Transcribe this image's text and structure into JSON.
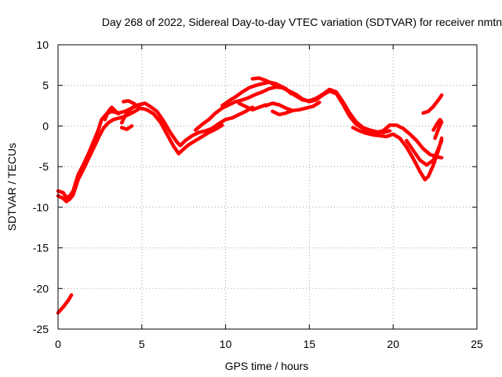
{
  "chart_data": {
    "type": "line",
    "title": "Day 268 of 2022, Sidereal Day-to-day VTEC variation (SDTVAR) for receiver nmtn",
    "xlabel": "GPS time / hours",
    "ylabel": "SDTVAR / TECUs",
    "xlim": [
      0,
      25
    ],
    "ylim": [
      -25,
      10
    ],
    "xticks": [
      0,
      5,
      10,
      15,
      20,
      25
    ],
    "yticks": [
      -25,
      -20,
      -15,
      -10,
      -5,
      0,
      5,
      10
    ],
    "xtick_labels": [
      "0",
      "5",
      "10",
      "15",
      "20",
      "25"
    ],
    "ytick_labels": [
      "-25",
      "-20",
      "-15",
      "-10",
      "-5",
      "0",
      "5",
      "10"
    ],
    "grid": true,
    "series_color": "#ff0000",
    "series": [
      {
        "name": "track-1",
        "points": [
          [
            0.0,
            -23.0
          ],
          [
            0.3,
            -22.3
          ],
          [
            0.6,
            -21.5
          ],
          [
            0.8,
            -20.8
          ]
        ]
      },
      {
        "name": "track-2",
        "points": [
          [
            0.0,
            -8.0
          ],
          [
            0.3,
            -8.2
          ],
          [
            0.5,
            -8.8
          ],
          [
            0.7,
            -8.6
          ],
          [
            0.9,
            -8.0
          ],
          [
            1.2,
            -6.0
          ],
          [
            1.5,
            -4.8
          ],
          [
            1.8,
            -3.5
          ],
          [
            2.1,
            -2.0
          ],
          [
            2.4,
            -0.5
          ],
          [
            2.6,
            0.8
          ],
          [
            2.9,
            1.5
          ],
          [
            3.2,
            1.8
          ],
          [
            3.6,
            1.6
          ],
          [
            4.0,
            1.8
          ],
          [
            4.4,
            2.2
          ],
          [
            4.8,
            2.6
          ],
          [
            5.2,
            2.8
          ],
          [
            5.5,
            2.4
          ],
          [
            5.9,
            1.8
          ],
          [
            6.3,
            0.6
          ],
          [
            6.7,
            -0.8
          ],
          [
            7.1,
            -2.0
          ],
          [
            7.3,
            -2.4
          ],
          [
            7.6,
            -1.8
          ],
          [
            8.0,
            -1.2
          ],
          [
            8.4,
            -0.8
          ],
          [
            8.8,
            -0.6
          ],
          [
            9.2,
            -0.3
          ],
          [
            9.6,
            0.3
          ],
          [
            10.0,
            0.8
          ],
          [
            10.4,
            1.0
          ],
          [
            10.8,
            1.4
          ],
          [
            11.2,
            1.8
          ],
          [
            11.6,
            2.3
          ]
        ]
      },
      {
        "name": "track-3",
        "points": [
          [
            0.0,
            -8.6
          ],
          [
            0.3,
            -8.9
          ],
          [
            0.5,
            -9.3
          ],
          [
            0.7,
            -9.0
          ],
          [
            0.9,
            -8.5
          ],
          [
            1.2,
            -6.6
          ],
          [
            1.5,
            -5.4
          ],
          [
            1.8,
            -4.1
          ],
          [
            2.1,
            -2.8
          ],
          [
            2.4,
            -1.5
          ],
          [
            2.7,
            -0.3
          ],
          [
            3.0,
            0.4
          ],
          [
            3.3,
            0.8
          ],
          [
            3.7,
            1.0
          ],
          [
            4.1,
            1.3
          ],
          [
            4.5,
            1.7
          ],
          [
            4.9,
            2.2
          ],
          [
            5.3,
            2.0
          ],
          [
            5.7,
            1.5
          ],
          [
            6.1,
            0.5
          ],
          [
            6.5,
            -1.0
          ],
          [
            6.9,
            -2.5
          ],
          [
            7.2,
            -3.4
          ],
          [
            7.4,
            -3.0
          ],
          [
            7.8,
            -2.3
          ],
          [
            8.2,
            -1.8
          ],
          [
            8.6,
            -1.3
          ],
          [
            9.0,
            -0.8
          ],
          [
            9.4,
            -0.4
          ],
          [
            9.8,
            0.1
          ]
        ]
      },
      {
        "name": "track-4",
        "points": [
          [
            2.8,
            0.8
          ],
          [
            3.0,
            1.8
          ],
          [
            3.2,
            2.3
          ],
          [
            3.4,
            1.9
          ],
          [
            3.6,
            1.5
          ]
        ]
      },
      {
        "name": "track-5",
        "points": [
          [
            3.8,
            0.4
          ],
          [
            4.0,
            1.2
          ],
          [
            4.2,
            1.8
          ],
          [
            4.4,
            2.2
          ],
          [
            4.6,
            2.5
          ],
          [
            4.8,
            2.4
          ]
        ]
      },
      {
        "name": "track-6",
        "points": [
          [
            3.9,
            3.0
          ],
          [
            4.2,
            3.1
          ],
          [
            4.5,
            2.8
          ],
          [
            4.8,
            2.4
          ]
        ]
      },
      {
        "name": "track-7",
        "points": [
          [
            3.8,
            -0.2
          ],
          [
            4.1,
            -0.4
          ],
          [
            4.4,
            0.0
          ]
        ]
      },
      {
        "name": "track-8",
        "points": [
          [
            8.2,
            -0.5
          ],
          [
            8.6,
            0.2
          ],
          [
            9.0,
            0.8
          ],
          [
            9.4,
            1.6
          ],
          [
            9.8,
            2.2
          ],
          [
            10.2,
            2.6
          ],
          [
            10.6,
            3.0
          ],
          [
            11.0,
            3.2
          ],
          [
            11.4,
            3.5
          ],
          [
            11.8,
            3.9
          ],
          [
            12.2,
            4.2
          ],
          [
            12.6,
            4.6
          ],
          [
            13.0,
            4.8
          ],
          [
            13.4,
            4.7
          ],
          [
            13.8,
            4.3
          ],
          [
            14.2,
            3.9
          ],
          [
            14.6,
            3.3
          ],
          [
            15.0,
            3.0
          ],
          [
            15.4,
            3.2
          ],
          [
            15.8,
            3.8
          ],
          [
            16.2,
            4.3
          ],
          [
            16.6,
            4.0
          ],
          [
            17.0,
            2.7
          ],
          [
            17.4,
            1.2
          ],
          [
            17.8,
            0.2
          ],
          [
            18.2,
            -0.3
          ],
          [
            18.6,
            -0.6
          ],
          [
            19.0,
            -0.8
          ],
          [
            19.4,
            -0.6
          ],
          [
            19.8,
            0.1
          ],
          [
            20.2,
            0.1
          ],
          [
            20.6,
            -0.3
          ],
          [
            21.0,
            -1.0
          ],
          [
            21.4,
            -1.8
          ],
          [
            21.8,
            -2.8
          ],
          [
            22.2,
            -3.5
          ],
          [
            22.6,
            -3.8
          ],
          [
            22.9,
            -3.9
          ]
        ]
      },
      {
        "name": "track-9",
        "points": [
          [
            9.8,
            2.5
          ],
          [
            10.2,
            3.1
          ],
          [
            10.6,
            3.6
          ],
          [
            11.0,
            4.2
          ],
          [
            11.4,
            4.7
          ],
          [
            11.8,
            5.0
          ],
          [
            12.2,
            5.2
          ],
          [
            12.6,
            5.4
          ],
          [
            13.0,
            5.2
          ],
          [
            13.4,
            4.8
          ],
          [
            13.8,
            4.2
          ],
          [
            14.2,
            3.7
          ],
          [
            14.6,
            3.2
          ],
          [
            15.0,
            3.1
          ],
          [
            15.4,
            3.4
          ],
          [
            15.8,
            3.9
          ],
          [
            16.2,
            4.5
          ],
          [
            16.6,
            4.2
          ],
          [
            17.0,
            3.0
          ],
          [
            17.4,
            1.6
          ],
          [
            17.8,
            0.5
          ],
          [
            18.2,
            -0.2
          ],
          [
            18.6,
            -0.5
          ],
          [
            19.0,
            -0.7
          ],
          [
            19.4,
            -0.8
          ],
          [
            19.8,
            -0.6
          ]
        ]
      },
      {
        "name": "track-10",
        "points": [
          [
            11.6,
            5.8
          ],
          [
            12.0,
            5.9
          ],
          [
            12.4,
            5.6
          ],
          [
            12.8,
            5.2
          ],
          [
            13.2,
            4.9
          ],
          [
            13.6,
            4.6
          ],
          [
            13.9,
            4.0
          ]
        ]
      },
      {
        "name": "track-11",
        "points": [
          [
            12.4,
            2.5
          ],
          [
            12.8,
            2.8
          ],
          [
            13.2,
            2.6
          ],
          [
            13.6,
            2.2
          ],
          [
            14.0,
            1.9
          ],
          [
            14.4,
            2.0
          ],
          [
            14.8,
            2.2
          ],
          [
            15.2,
            2.4
          ],
          [
            15.6,
            2.9
          ]
        ]
      },
      {
        "name": "track-12",
        "points": [
          [
            12.8,
            1.8
          ],
          [
            13.2,
            1.4
          ],
          [
            13.6,
            1.6
          ],
          [
            14.0,
            1.9
          ]
        ]
      },
      {
        "name": "track-13",
        "points": [
          [
            10.8,
            2.8
          ],
          [
            11.2,
            2.4
          ],
          [
            11.6,
            2.0
          ],
          [
            12.0,
            2.3
          ],
          [
            12.4,
            2.6
          ]
        ]
      },
      {
        "name": "track-14",
        "points": [
          [
            17.6,
            -0.2
          ],
          [
            18.0,
            -0.6
          ],
          [
            18.4,
            -0.9
          ],
          [
            18.8,
            -1.1
          ],
          [
            19.2,
            -1.2
          ],
          [
            19.6,
            -1.3
          ],
          [
            20.0,
            -1.0
          ],
          [
            20.4,
            -1.5
          ],
          [
            20.8,
            -2.6
          ],
          [
            21.2,
            -4.0
          ],
          [
            21.6,
            -5.6
          ],
          [
            21.9,
            -6.6
          ],
          [
            22.1,
            -6.2
          ],
          [
            22.4,
            -4.8
          ],
          [
            22.7,
            -3.0
          ],
          [
            22.9,
            -1.5
          ]
        ]
      },
      {
        "name": "track-15",
        "points": [
          [
            20.8,
            -1.8
          ],
          [
            21.2,
            -3.0
          ],
          [
            21.6,
            -4.2
          ],
          [
            22.0,
            -4.8
          ],
          [
            22.4,
            -4.2
          ],
          [
            22.7,
            -2.8
          ],
          [
            22.9,
            -1.8
          ]
        ]
      },
      {
        "name": "track-16",
        "points": [
          [
            21.8,
            1.6
          ],
          [
            22.1,
            1.8
          ],
          [
            22.4,
            2.4
          ],
          [
            22.7,
            3.2
          ],
          [
            22.9,
            3.8
          ]
        ]
      },
      {
        "name": "track-17",
        "points": [
          [
            22.4,
            -0.5
          ],
          [
            22.6,
            0.2
          ],
          [
            22.8,
            0.8
          ],
          [
            22.9,
            0.5
          ],
          [
            22.7,
            -0.4
          ],
          [
            22.5,
            -1.5
          ]
        ]
      }
    ]
  }
}
